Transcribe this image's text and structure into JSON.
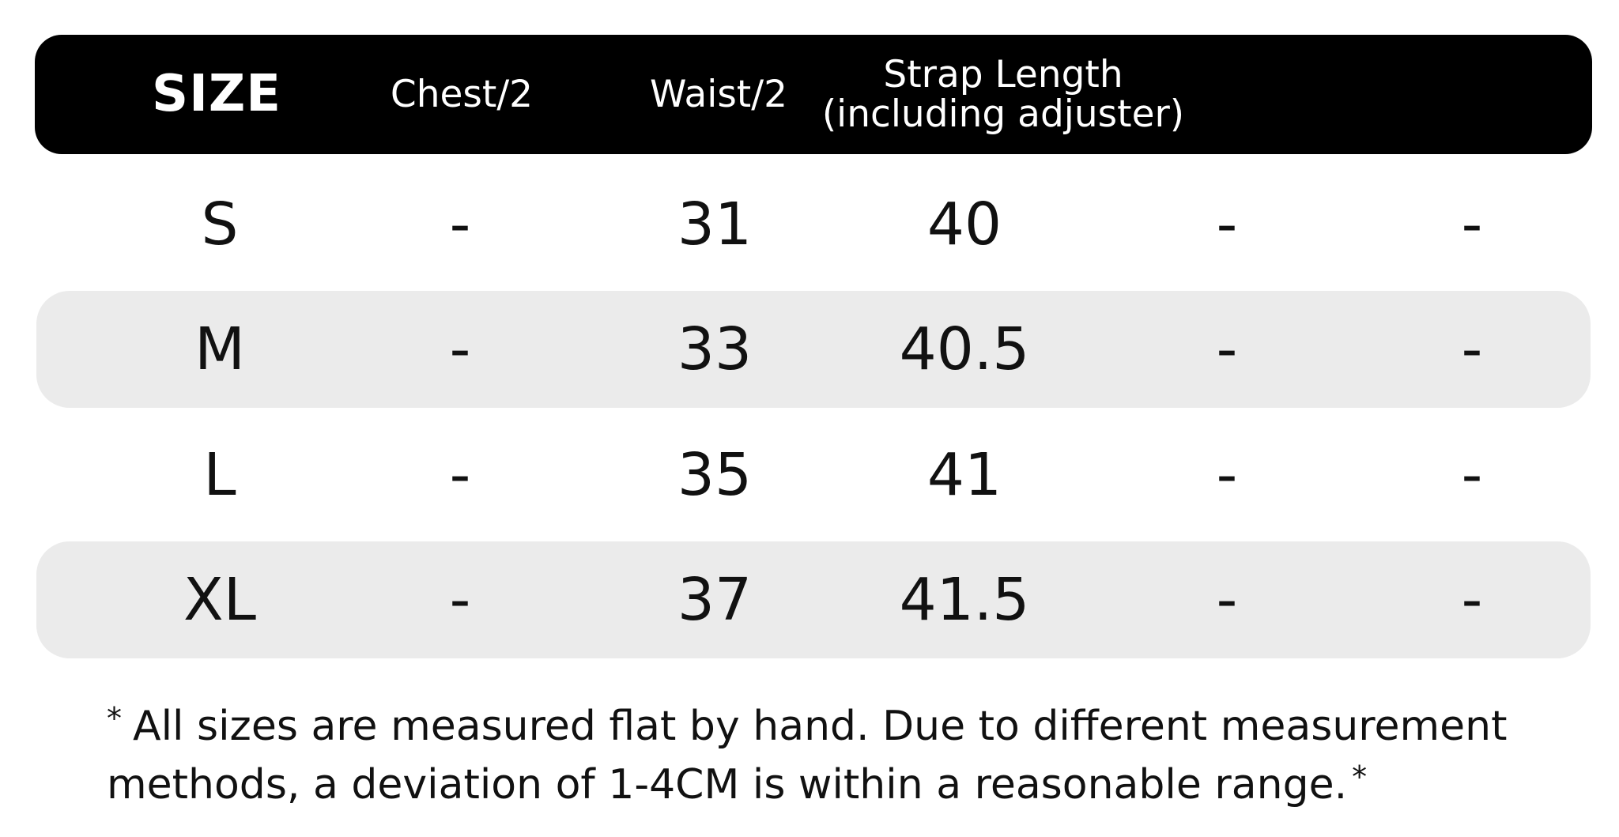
{
  "table": {
    "header": {
      "size": "SIZE",
      "chest": "Chest/2",
      "waist": "Waist/2",
      "strap_line1": "Strap Length",
      "strap_line2": "(including adjuster)",
      "col5": "",
      "col6": ""
    },
    "rows": [
      {
        "size": "S",
        "chest": "-",
        "waist": "31",
        "strap": "40",
        "col5": "-",
        "col6": "-"
      },
      {
        "size": "M",
        "chest": "-",
        "waist": "33",
        "strap": "40.5",
        "col5": "-",
        "col6": "-"
      },
      {
        "size": "L",
        "chest": "-",
        "waist": "35",
        "strap": "41",
        "col5": "-",
        "col6": "-"
      },
      {
        "size": "XL",
        "chest": "-",
        "waist": "37",
        "strap": "41.5",
        "col5": "-",
        "col6": "-"
      }
    ]
  },
  "footnote": {
    "star": "*",
    "text": "All sizes are measured flat by hand. Due to different measurement methods, a deviation of 1-4CM is within a reasonable range.",
    "star_end": "*"
  },
  "colors": {
    "header_bg": "#000000",
    "header_text": "#ffffff",
    "row_shade": "#ebebeb",
    "body_text": "#111111"
  }
}
